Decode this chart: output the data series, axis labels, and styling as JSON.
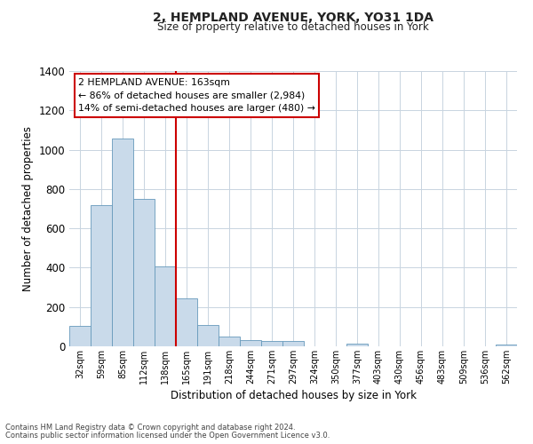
{
  "title": "2, HEMPLAND AVENUE, YORK, YO31 1DA",
  "subtitle": "Size of property relative to detached houses in York",
  "xlabel": "Distribution of detached houses by size in York",
  "ylabel": "Number of detached properties",
  "bar_color": "#c9daea",
  "bar_edge_color": "#6699bb",
  "background_color": "#ffffff",
  "grid_color": "#c8d4e0",
  "bin_labels": [
    "32sqm",
    "59sqm",
    "85sqm",
    "112sqm",
    "138sqm",
    "165sqm",
    "191sqm",
    "218sqm",
    "244sqm",
    "271sqm",
    "297sqm",
    "324sqm",
    "350sqm",
    "377sqm",
    "403sqm",
    "430sqm",
    "456sqm",
    "483sqm",
    "509sqm",
    "536sqm",
    "562sqm"
  ],
  "bar_heights": [
    105,
    720,
    1055,
    748,
    405,
    245,
    110,
    50,
    30,
    25,
    25,
    0,
    0,
    15,
    0,
    0,
    0,
    0,
    0,
    0,
    10
  ],
  "red_line_index": 5,
  "ylim": [
    0,
    1400
  ],
  "yticks": [
    0,
    200,
    400,
    600,
    800,
    1000,
    1200,
    1400
  ],
  "annotation_title": "2 HEMPLAND AVENUE: 163sqm",
  "annotation_line1": "← 86% of detached houses are smaller (2,984)",
  "annotation_line2": "14% of semi-detached houses are larger (480) →",
  "annotation_box_color": "#ffffff",
  "annotation_box_edge": "#cc0000",
  "red_line_color": "#cc0000",
  "footer_line1": "Contains HM Land Registry data © Crown copyright and database right 2024.",
  "footer_line2": "Contains public sector information licensed under the Open Government Licence v3.0."
}
